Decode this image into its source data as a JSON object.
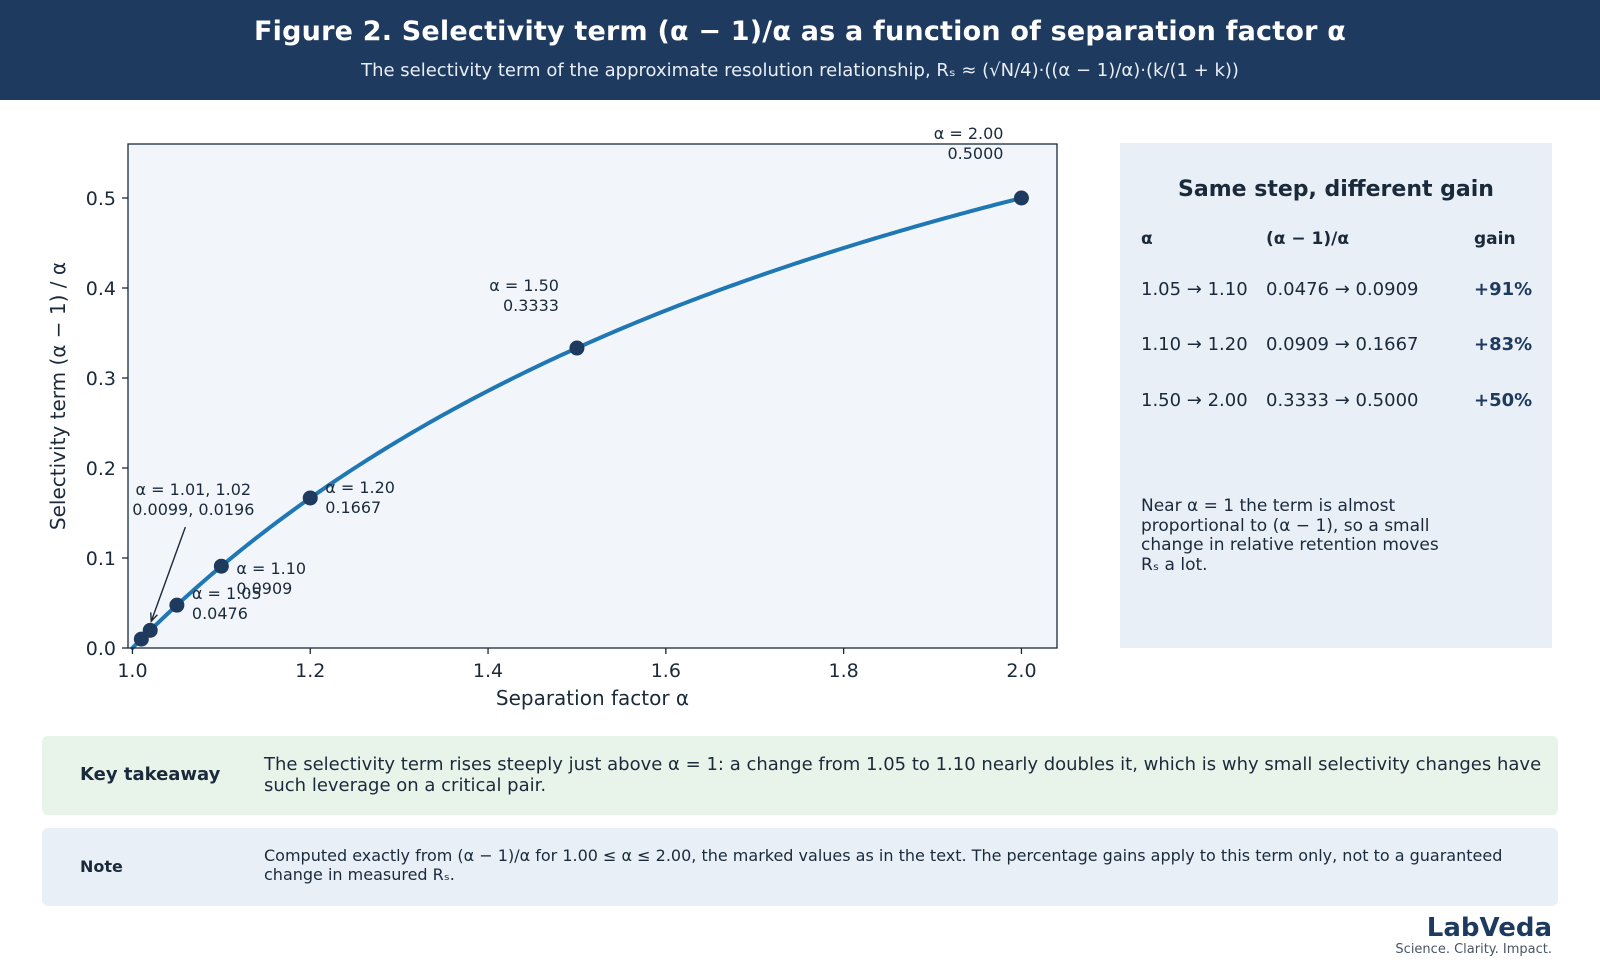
{
  "header": {
    "title": "Figure 2. Selectivity term (α − 1)/α as a function of separation factor α",
    "subtitle": "The selectivity term of the approximate resolution relationship, Rₛ ≈ (√N/4)·((α − 1)/α)·(k/(1 + k))"
  },
  "chart_data": {
    "type": "line",
    "xlabel": "Separation factor α",
    "ylabel": "Selectivity term  (α − 1) / α",
    "xlim": [
      0.995,
      2.04
    ],
    "ylim": [
      0,
      0.56
    ],
    "xticks": [
      "1.0",
      "1.2",
      "1.4",
      "1.6",
      "1.8",
      "2.0"
    ],
    "xtick_values": [
      1.0,
      1.2,
      1.4,
      1.6,
      1.8,
      2.0
    ],
    "yticks": [
      "0.0",
      "0.1",
      "0.2",
      "0.3",
      "0.4",
      "0.5"
    ],
    "ytick_values": [
      0.0,
      0.1,
      0.2,
      0.3,
      0.4,
      0.5
    ],
    "grid": false,
    "curve": {
      "x": [
        1.0,
        1.01,
        1.02,
        1.05,
        1.1,
        1.15,
        1.2,
        1.3,
        1.4,
        1.5,
        1.6,
        1.7,
        1.8,
        1.9,
        2.0
      ],
      "y": [
        0.0,
        0.0099,
        0.0196,
        0.0476,
        0.0909,
        0.1304,
        0.1667,
        0.2308,
        0.2857,
        0.3333,
        0.375,
        0.4118,
        0.4444,
        0.4737,
        0.5
      ],
      "color": "#1f77b4"
    },
    "points": {
      "x": [
        1.01,
        1.02,
        1.05,
        1.1,
        1.2,
        1.5,
        2.0
      ],
      "y": [
        0.0099,
        0.0196,
        0.0476,
        0.0909,
        0.1667,
        0.3333,
        0.5
      ],
      "color": "#1e3a5f"
    },
    "annotations": [
      {
        "line1": "α = 1.01, 1.02",
        "line2": "0.0099, 0.0196",
        "x": 1.01,
        "y": 0.0099
      },
      {
        "line1": "α = 1.05",
        "line2": "0.0476",
        "x": 1.05,
        "y": 0.0476
      },
      {
        "line1": "α = 1.10",
        "line2": "0.0909",
        "x": 1.1,
        "y": 0.0909
      },
      {
        "line1": "α = 1.20",
        "line2": "0.1667",
        "x": 1.2,
        "y": 0.1667
      },
      {
        "line1": "α = 1.50",
        "line2": "0.3333",
        "x": 1.5,
        "y": 0.3333
      },
      {
        "line1": "α = 2.00",
        "line2": "0.5000",
        "x": 2.0,
        "y": 0.5
      }
    ],
    "plot_background": "#f2f6fb"
  },
  "gain_panel": {
    "title": "Same step, different gain",
    "headers": [
      "α",
      "(α − 1)/α",
      "gain"
    ],
    "rows": [
      {
        "alpha": "1.05 → 1.10",
        "term": "0.0476 → 0.0909",
        "gain": "+91%"
      },
      {
        "alpha": "1.10 → 1.20",
        "term": "0.0909 → 0.1667",
        "gain": "+83%"
      },
      {
        "alpha": "1.50 → 2.00",
        "term": "0.3333 → 0.5000",
        "gain": "+50%"
      }
    ],
    "note": "Near α = 1 the term is almost proportional to (α − 1), so a small change in relative retention moves Rₛ a lot."
  },
  "takeaway": {
    "label": "Key takeaway",
    "text": "The selectivity term rises steeply just above α = 1: a change from 1.05 to 1.10 nearly doubles it, which is why small selectivity changes have such leverage on a critical pair."
  },
  "note": {
    "label": "Note",
    "text": "Computed exactly from (α − 1)/α for 1.00 ≤ α ≤ 2.00, the marked values as in the text. The percentage gains apply to this term only, not to a guaranteed change in measured Rₛ."
  },
  "brand": {
    "name": "LabVeda",
    "tagline": "Science. Clarity. Impact."
  },
  "colors": {
    "header_bg": "#1e3a5f",
    "curve": "#1f77b4",
    "marker": "#1e3a5f",
    "panel_bg": "#e8eff7",
    "takeaway_bg": "#e8f3ea"
  }
}
